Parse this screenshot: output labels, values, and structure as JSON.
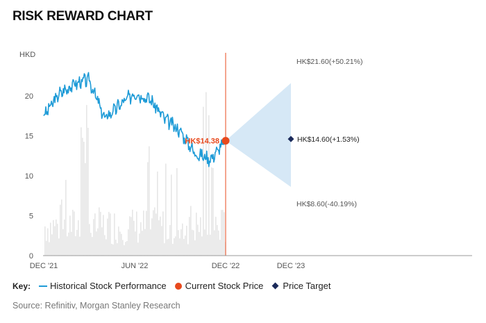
{
  "title": "RISK REWARD CHART",
  "source": "Source: Refinitiv, Morgan Stanley Research",
  "key": {
    "label": "Key:",
    "historical": "Historical Stock Performance",
    "current": "Current Stock Price",
    "target": "Price Target"
  },
  "colors": {
    "history_line": "#1e9bd7",
    "current_dot": "#e8491d",
    "target_marker": "#1b2a5a",
    "cone_fill": "#d6e8f6",
    "volume_bars": "#e6e6e6"
  },
  "chart_data": {
    "type": "line",
    "ylabel": "HKD",
    "ylim": [
      0,
      25
    ],
    "yticks": [
      0,
      5,
      10,
      15,
      20
    ],
    "x_ticks": [
      "DEC '21",
      "JUN '22",
      "DEC '22",
      "DEC '23"
    ],
    "grid": false,
    "series": [
      {
        "name": "Historical Stock Performance",
        "x": [
          "2021-12",
          "2022-01",
          "2022-02",
          "2022-03",
          "2022-04",
          "2022-05",
          "2022-06",
          "2022-07",
          "2022-08",
          "2022-09",
          "2022-10",
          "2022-11",
          "2022-12"
        ],
        "values": [
          17.5,
          20.2,
          21.5,
          22.0,
          17.2,
          18.8,
          20.4,
          19.6,
          17.1,
          15.6,
          12.8,
          12.1,
          14.38
        ]
      }
    ],
    "current_price": {
      "date": "DEC '22",
      "value": 14.38,
      "label": "HK$14.38"
    },
    "projection": {
      "date": "DEC '23",
      "bull": {
        "value": 21.6,
        "label": "HK$21.60(+50.21%)"
      },
      "base": {
        "value": 14.6,
        "label": "HK$14.60(+1.53%)"
      },
      "bear": {
        "value": 8.6,
        "label": "HK$8.60(-40.19%)"
      }
    }
  }
}
